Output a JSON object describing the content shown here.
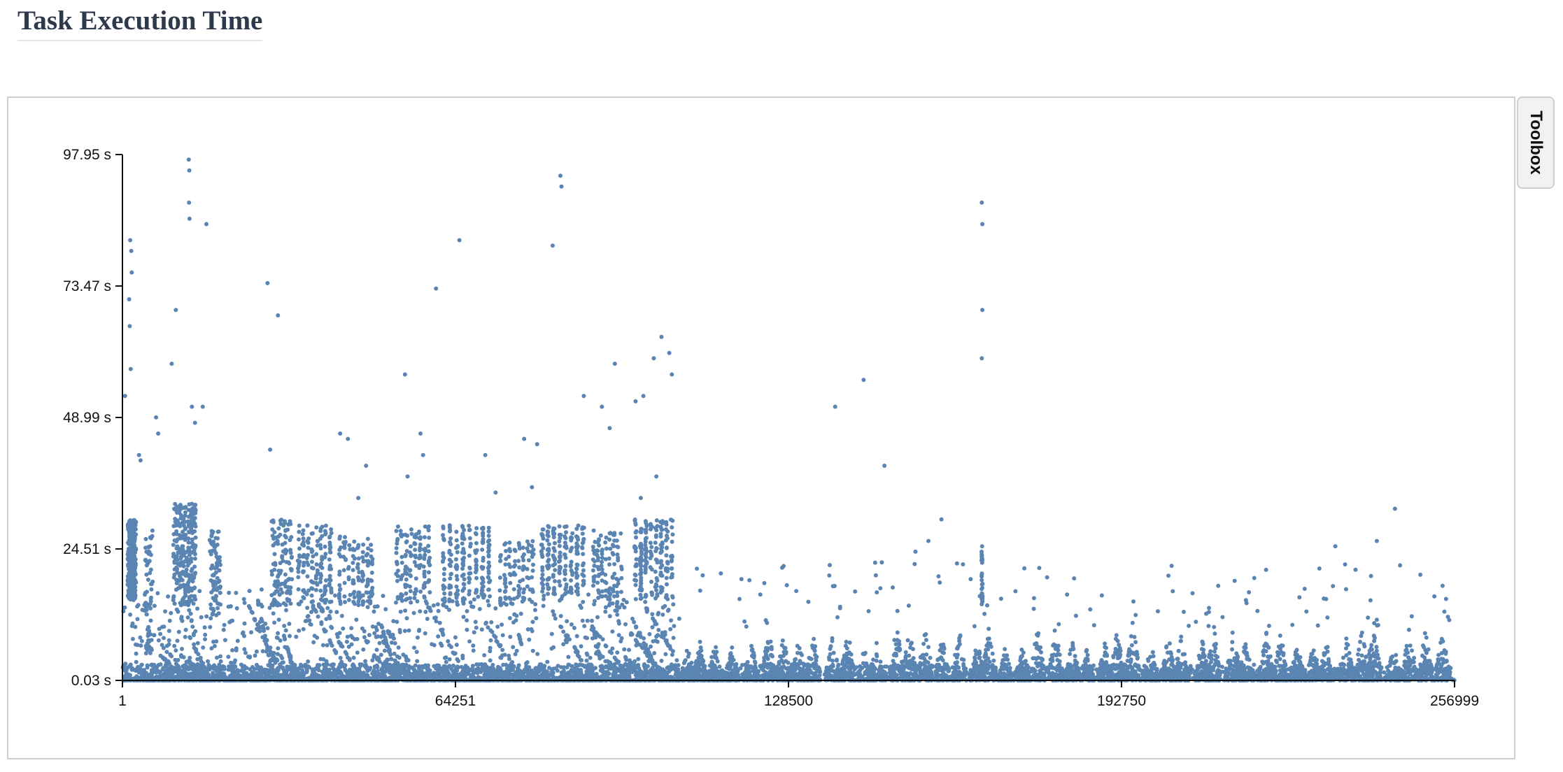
{
  "page": {
    "title": "Task Execution Time"
  },
  "toolbox": {
    "label": "Toolbox"
  },
  "chart_data": {
    "type": "scatter",
    "title": "",
    "xlabel": "",
    "ylabel": "",
    "x_ticks": [
      "1",
      "64251",
      "128500",
      "192750",
      "256999"
    ],
    "y_ticks": [
      "0.03 s",
      "24.51 s",
      "48.99 s",
      "73.47 s",
      "97.95 s"
    ],
    "xlim": [
      1,
      256999
    ],
    "ylim": [
      0.03,
      97.95
    ],
    "y_unit": "s",
    "point_color": "#5a84b2",
    "grid": false,
    "legend": "none",
    "outliers": [
      {
        "x": 1500,
        "y": 82
      },
      {
        "x": 1700,
        "y": 80
      },
      {
        "x": 1300,
        "y": 71
      },
      {
        "x": 1400,
        "y": 66
      },
      {
        "x": 1600,
        "y": 58
      },
      {
        "x": 500,
        "y": 53
      },
      {
        "x": 1800,
        "y": 76
      },
      {
        "x": 12800,
        "y": 97
      },
      {
        "x": 12900,
        "y": 95
      },
      {
        "x": 12850,
        "y": 89
      },
      {
        "x": 12950,
        "y": 86
      },
      {
        "x": 16200,
        "y": 85
      },
      {
        "x": 10300,
        "y": 69
      },
      {
        "x": 9500,
        "y": 59
      },
      {
        "x": 13400,
        "y": 51
      },
      {
        "x": 15500,
        "y": 51
      },
      {
        "x": 6500,
        "y": 49
      },
      {
        "x": 6900,
        "y": 46
      },
      {
        "x": 3200,
        "y": 42
      },
      {
        "x": 3500,
        "y": 41
      },
      {
        "x": 14000,
        "y": 48
      },
      {
        "x": 28000,
        "y": 74
      },
      {
        "x": 28500,
        "y": 43
      },
      {
        "x": 30000,
        "y": 68
      },
      {
        "x": 42000,
        "y": 46
      },
      {
        "x": 43500,
        "y": 45
      },
      {
        "x": 47000,
        "y": 40
      },
      {
        "x": 45500,
        "y": 34
      },
      {
        "x": 54500,
        "y": 57
      },
      {
        "x": 57500,
        "y": 46
      },
      {
        "x": 58000,
        "y": 42
      },
      {
        "x": 55000,
        "y": 38
      },
      {
        "x": 60500,
        "y": 73
      },
      {
        "x": 65000,
        "y": 82
      },
      {
        "x": 70000,
        "y": 42
      },
      {
        "x": 72000,
        "y": 35
      },
      {
        "x": 77500,
        "y": 45
      },
      {
        "x": 80000,
        "y": 44
      },
      {
        "x": 83000,
        "y": 81
      },
      {
        "x": 84500,
        "y": 94
      },
      {
        "x": 84700,
        "y": 92
      },
      {
        "x": 79000,
        "y": 36
      },
      {
        "x": 89000,
        "y": 53
      },
      {
        "x": 92500,
        "y": 51
      },
      {
        "x": 95000,
        "y": 59
      },
      {
        "x": 94000,
        "y": 47
      },
      {
        "x": 99000,
        "y": 52
      },
      {
        "x": 100500,
        "y": 53
      },
      {
        "x": 102500,
        "y": 60
      },
      {
        "x": 104000,
        "y": 64
      },
      {
        "x": 105500,
        "y": 61
      },
      {
        "x": 106000,
        "y": 57
      },
      {
        "x": 103000,
        "y": 38
      },
      {
        "x": 100000,
        "y": 34
      },
      {
        "x": 137500,
        "y": 51
      },
      {
        "x": 143000,
        "y": 56
      },
      {
        "x": 147000,
        "y": 40
      },
      {
        "x": 146500,
        "y": 22
      },
      {
        "x": 153000,
        "y": 24
      },
      {
        "x": 155500,
        "y": 26
      },
      {
        "x": 158000,
        "y": 30
      },
      {
        "x": 165800,
        "y": 89
      },
      {
        "x": 165900,
        "y": 85
      },
      {
        "x": 165900,
        "y": 69
      },
      {
        "x": 165800,
        "y": 60
      },
      {
        "x": 165850,
        "y": 25
      },
      {
        "x": 245500,
        "y": 32
      },
      {
        "x": 242000,
        "y": 26
      },
      {
        "x": 234000,
        "y": 25
      }
    ]
  }
}
